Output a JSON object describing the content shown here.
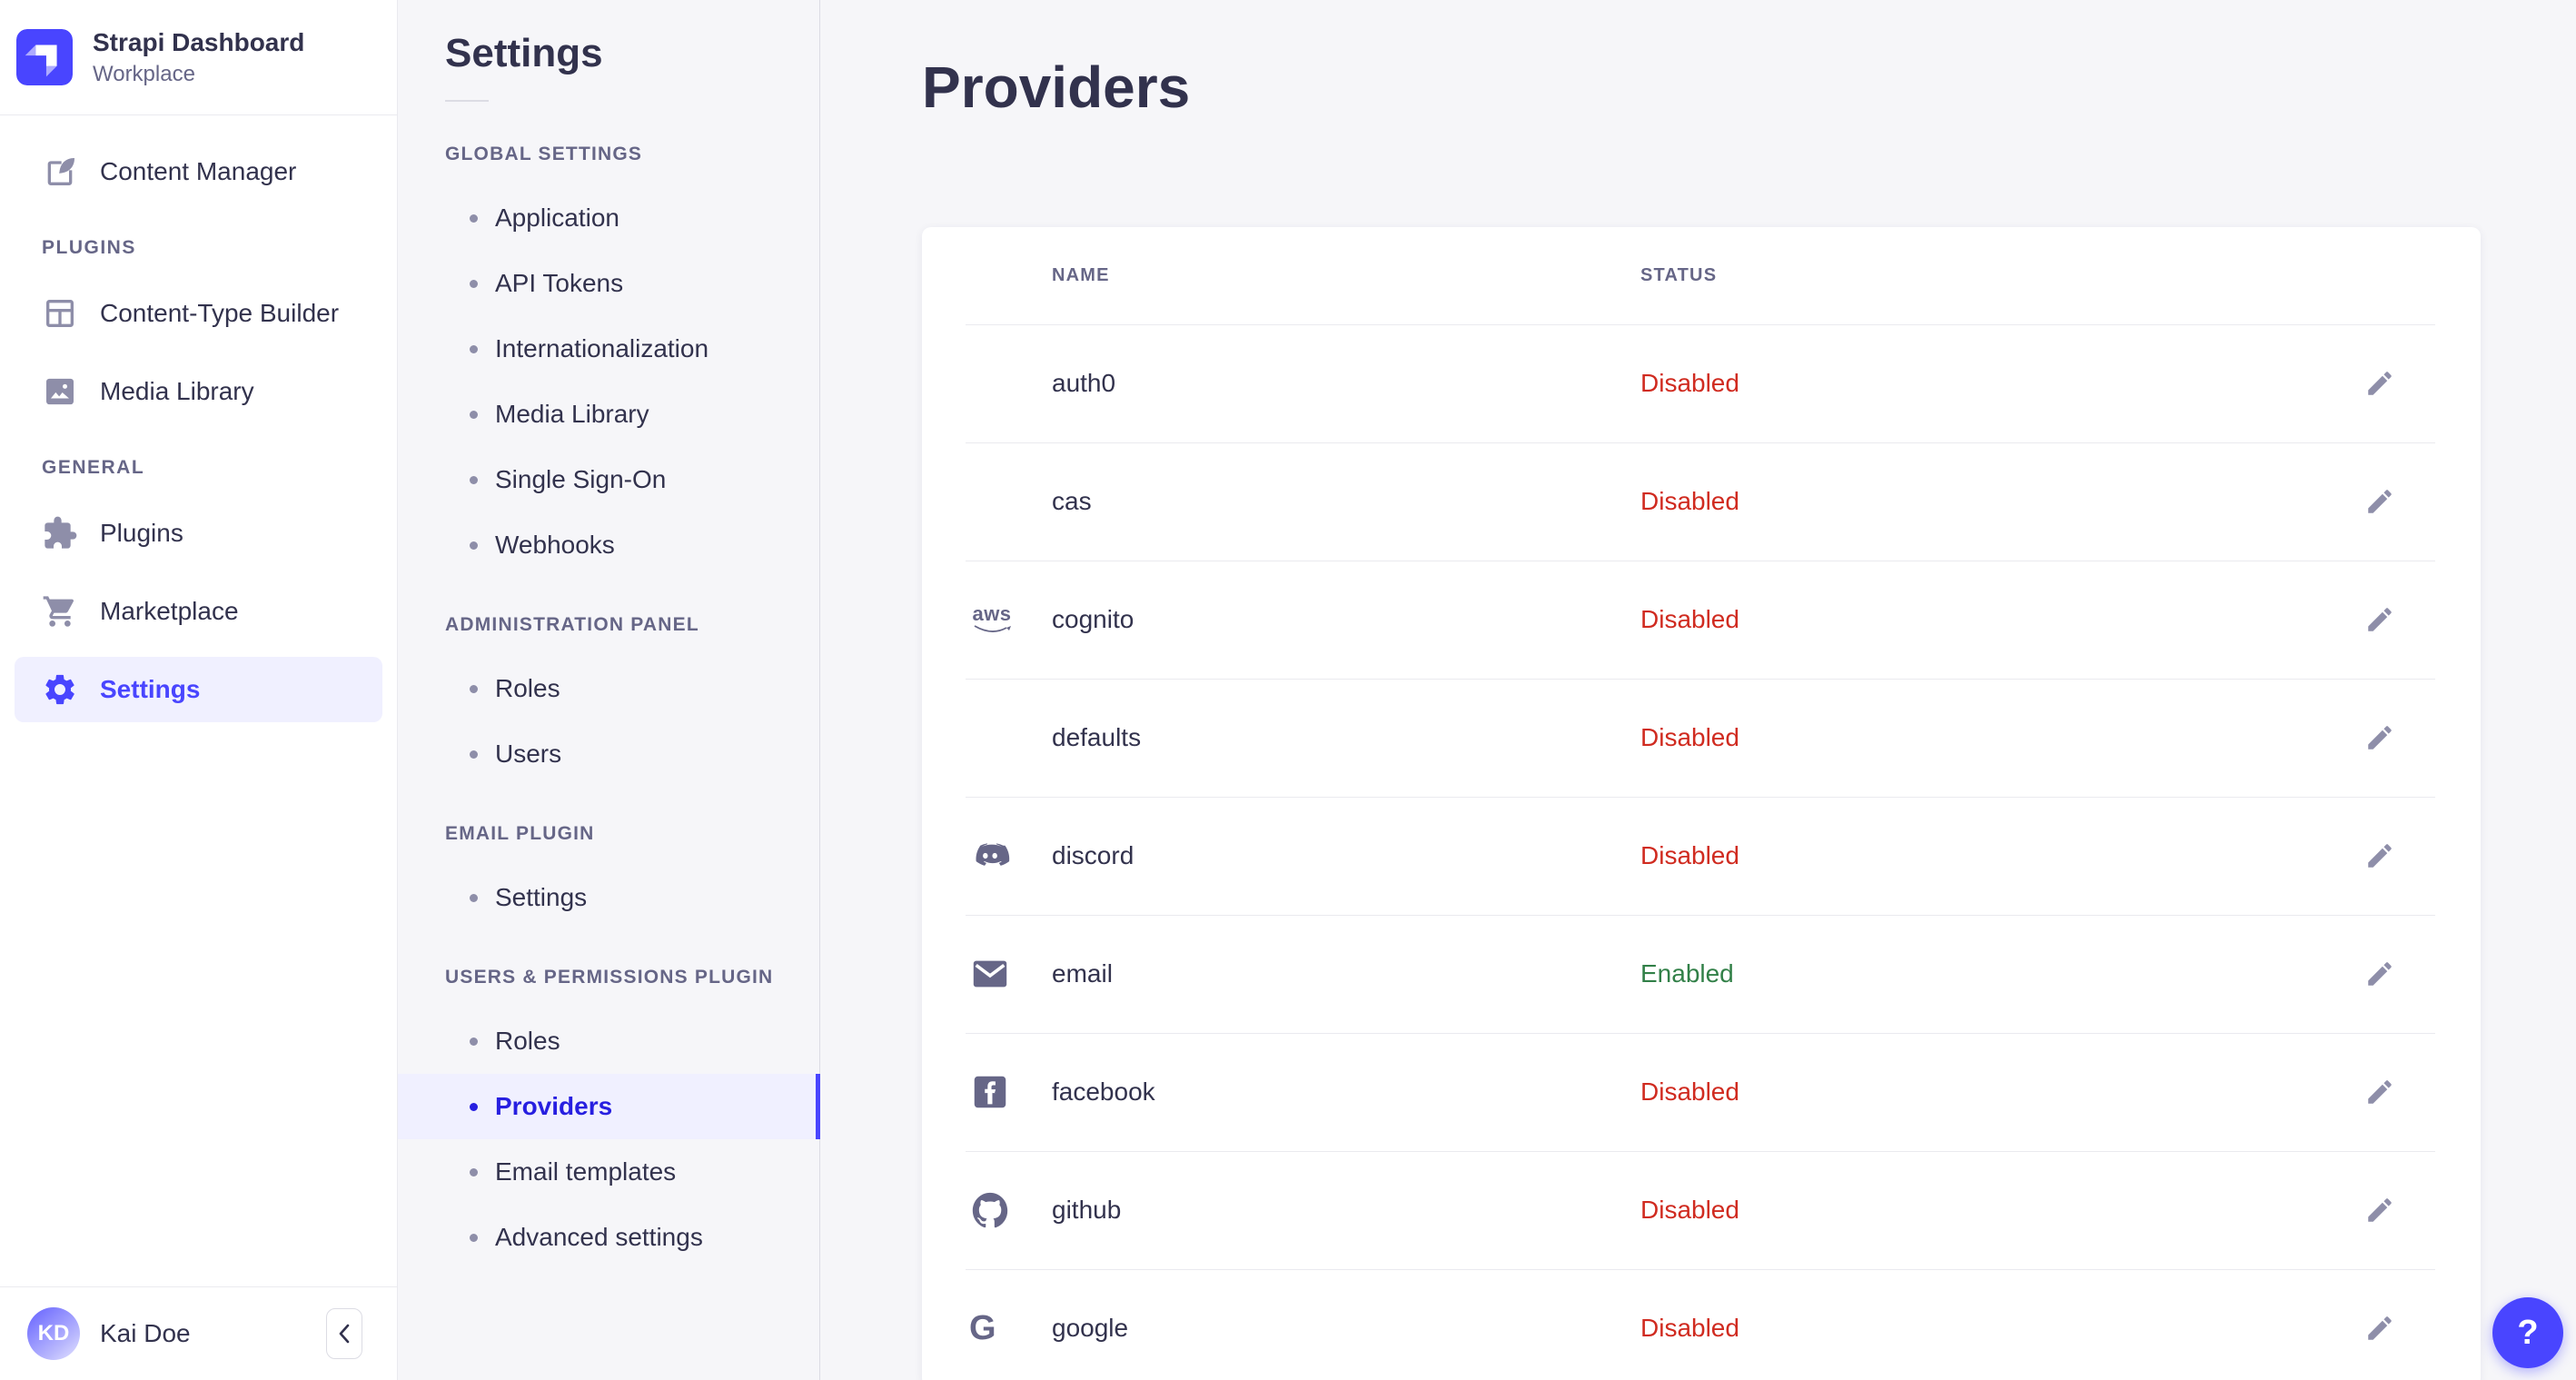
{
  "brand": {
    "title": "Strapi Dashboard",
    "subtitle": "Workplace"
  },
  "sidebar": {
    "sections": [
      {
        "label": "",
        "items": [
          {
            "icon": "content-manager",
            "label": "Content Manager"
          }
        ]
      },
      {
        "label": "PLUGINS",
        "items": [
          {
            "icon": "content-type-builder",
            "label": "Content-Type Builder"
          },
          {
            "icon": "media-library",
            "label": "Media Library"
          }
        ]
      },
      {
        "label": "GENERAL",
        "items": [
          {
            "icon": "plugins",
            "label": "Plugins"
          },
          {
            "icon": "marketplace",
            "label": "Marketplace"
          },
          {
            "icon": "settings",
            "label": "Settings",
            "active": true
          }
        ]
      }
    ],
    "user": {
      "initials": "KD",
      "name": "Kai Doe"
    },
    "collapse_icon": "chevron-left"
  },
  "subnav": {
    "title": "Settings",
    "sections": [
      {
        "label": "GLOBAL SETTINGS",
        "items": [
          "Application",
          "API Tokens",
          "Internationalization",
          "Media Library",
          "Single Sign-On",
          "Webhooks"
        ]
      },
      {
        "label": "ADMINISTRATION PANEL",
        "items": [
          "Roles",
          "Users"
        ]
      },
      {
        "label": "EMAIL PLUGIN",
        "items": [
          "Settings"
        ]
      },
      {
        "label": "USERS & PERMISSIONS PLUGIN",
        "items": [
          "Roles",
          {
            "label": "Providers",
            "active": true
          },
          "Email templates",
          "Advanced settings"
        ]
      }
    ]
  },
  "main": {
    "title": "Providers",
    "table": {
      "columns": [
        "NAME",
        "STATUS"
      ],
      "rows": [
        {
          "name": "auth0",
          "icon": null,
          "status": "Disabled"
        },
        {
          "name": "cas",
          "icon": null,
          "status": "Disabled"
        },
        {
          "name": "cognito",
          "icon": "aws",
          "status": "Disabled"
        },
        {
          "name": "defaults",
          "icon": null,
          "status": "Disabled"
        },
        {
          "name": "discord",
          "icon": "discord",
          "status": "Disabled"
        },
        {
          "name": "email",
          "icon": "email",
          "status": "Enabled"
        },
        {
          "name": "facebook",
          "icon": "facebook",
          "status": "Disabled"
        },
        {
          "name": "github",
          "icon": "github",
          "status": "Disabled"
        },
        {
          "name": "google",
          "icon": "google",
          "status": "Disabled"
        }
      ],
      "edit_icon": "pencil"
    }
  },
  "help": {
    "label": "?"
  },
  "colors": {
    "accent": "#4945ff",
    "active_text": "#271fe0",
    "active_bg": "#f0f0ff",
    "disabled": "#d02b20",
    "enabled": "#328048",
    "page_bg": "#f6f6f9"
  }
}
